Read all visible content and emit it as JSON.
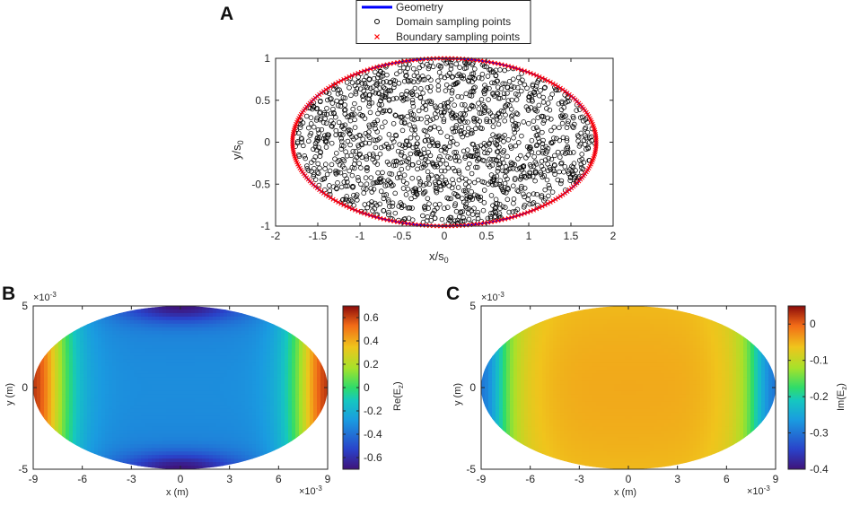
{
  "chart_data": [
    {
      "id": "A",
      "type": "scatter",
      "panel_label": "A",
      "xlabel_base": "x/s",
      "xlabel_sub": "0",
      "ylabel_base": "y/s",
      "ylabel_sub": "0",
      "xlim": [
        -2,
        2
      ],
      "ylim": [
        -1,
        1
      ],
      "xticks": [
        "-2",
        "-1.5",
        "-1",
        "-0.5",
        "0",
        "0.5",
        "1",
        "1.5",
        "2"
      ],
      "yticks": [
        "-1",
        "-0.5",
        "0",
        "0.5",
        "1"
      ],
      "xtick_values": [
        -2,
        -1.5,
        -1,
        -0.5,
        0,
        0.5,
        1,
        1.5,
        2
      ],
      "ytick_values": [
        -1,
        -0.5,
        0,
        0.5,
        1
      ],
      "legend_position": "top-center-outside",
      "ellipse_semi_axes": [
        1.8,
        1.0
      ],
      "series": [
        {
          "name": "Geometry",
          "style": "line",
          "color": "#0000ff"
        },
        {
          "name": "Domain sampling points",
          "style": "circle-marker",
          "color": "#000000"
        },
        {
          "name": "Boundary sampling points",
          "style": "x-marker",
          "color": "#ff0000"
        }
      ]
    },
    {
      "id": "B",
      "type": "heatmap",
      "panel_label": "B",
      "xlabel": "x (m)",
      "ylabel": "y (m)",
      "x_exponent_base": "×10",
      "x_exponent_power": "-3",
      "y_exponent_base": "×10",
      "y_exponent_power": "-3",
      "xlim": [
        -9,
        9
      ],
      "ylim": [
        -5,
        5
      ],
      "xticks": [
        "-9",
        "-6",
        "-3",
        "0",
        "3",
        "6",
        "9"
      ],
      "yticks": [
        "-5",
        "0",
        "5"
      ],
      "xtick_values": [
        -9,
        -6,
        -3,
        0,
        3,
        6,
        9
      ],
      "ytick_values": [
        -5,
        0,
        5
      ],
      "colorbar_label_base": "Re(E",
      "colorbar_label_sub": "z",
      "colorbar_label_end": ")",
      "colorbar_range": [
        -0.7,
        0.7
      ],
      "colorbar_ticks": [
        "-0.6",
        "-0.4",
        "-0.2",
        "0",
        "0.2",
        "0.4",
        "0.6"
      ],
      "colorbar_tick_values": [
        -0.6,
        -0.4,
        -0.2,
        0,
        0.2,
        0.4,
        0.6
      ],
      "field_description": "Re(E_z) over an ellipse (semi-axes 9e-3 m, 5e-3 m); about 0.65 near the x-ends, about -0.35 in the central region, about -0.65 near the top and bottom edges"
    },
    {
      "id": "C",
      "type": "heatmap",
      "panel_label": "C",
      "xlabel": "x (m)",
      "ylabel": "y (m)",
      "x_exponent_base": "×10",
      "x_exponent_power": "-3",
      "y_exponent_base": "×10",
      "y_exponent_power": "-3",
      "xlim": [
        -9,
        9
      ],
      "ylim": [
        -5,
        5
      ],
      "xticks": [
        "-9",
        "-6",
        "-3",
        "0",
        "3",
        "6",
        "9"
      ],
      "yticks": [
        "-5",
        "0",
        "5"
      ],
      "xtick_values": [
        -9,
        -6,
        -3,
        0,
        3,
        6,
        9
      ],
      "ytick_values": [
        -5,
        0,
        5
      ],
      "colorbar_label_base": "Im(E",
      "colorbar_label_sub": "z",
      "colorbar_label_end": ")",
      "colorbar_range": [
        -0.4,
        0.05
      ],
      "colorbar_ticks": [
        "-0.4",
        "-0.3",
        "-0.2",
        "-0.1",
        "0"
      ],
      "colorbar_tick_values": [
        -0.4,
        -0.3,
        -0.2,
        -0.1,
        0
      ],
      "field_description": "Im(E_z) over the same ellipse; about -0.05 across the central region, decreasing to about -0.3 near the x-ends"
    }
  ]
}
